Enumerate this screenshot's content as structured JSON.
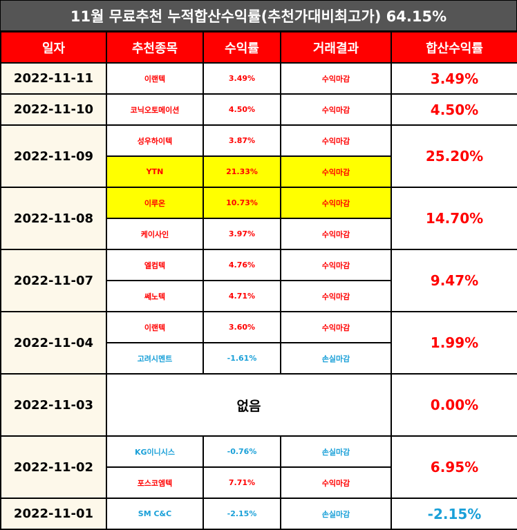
{
  "title": "11월 무료추천 누적합산수익률(추천가대비최고가) 64.15%",
  "headers": [
    "일자",
    "추천종목",
    "수익률",
    "거래결과",
    "합산수익률"
  ],
  "colors": {
    "header_bg": "#ff0000",
    "title_bg": "#555555",
    "date_bg": "#fdf8ea",
    "positive": "#ff0000",
    "negative": "#1aa0d8",
    "highlight": "#ffff00"
  },
  "rows": [
    {
      "date": "2022-11-11",
      "total": "3.49%",
      "total_sign": "pos",
      "items": [
        {
          "stock": "이랜텍",
          "rate": "3.49%",
          "result": "수익마감",
          "sign": "pos",
          "highlight": false
        }
      ]
    },
    {
      "date": "2022-11-10",
      "total": "4.50%",
      "total_sign": "pos",
      "items": [
        {
          "stock": "코닉오토메이션",
          "rate": "4.50%",
          "result": "수익마감",
          "sign": "pos",
          "highlight": false
        }
      ]
    },
    {
      "date": "2022-11-09",
      "total": "25.20%",
      "total_sign": "pos",
      "items": [
        {
          "stock": "성우하이텍",
          "rate": "3.87%",
          "result": "수익마감",
          "sign": "pos",
          "highlight": false
        },
        {
          "stock": "YTN",
          "rate": "21.33%",
          "result": "수익마감",
          "sign": "pos",
          "highlight": true
        }
      ]
    },
    {
      "date": "2022-11-08",
      "total": "14.70%",
      "total_sign": "pos",
      "items": [
        {
          "stock": "이루온",
          "rate": "10.73%",
          "result": "수익마감",
          "sign": "pos",
          "highlight": true
        },
        {
          "stock": "케이사인",
          "rate": "3.97%",
          "result": "수익마감",
          "sign": "pos",
          "highlight": false
        }
      ]
    },
    {
      "date": "2022-11-07",
      "total": "9.47%",
      "total_sign": "pos",
      "items": [
        {
          "stock": "엘컴텍",
          "rate": "4.76%",
          "result": "수익마감",
          "sign": "pos",
          "highlight": false
        },
        {
          "stock": "쎄노텍",
          "rate": "4.71%",
          "result": "수익마감",
          "sign": "pos",
          "highlight": false
        }
      ]
    },
    {
      "date": "2022-11-04",
      "total": "1.99%",
      "total_sign": "pos",
      "items": [
        {
          "stock": "이랜텍",
          "rate": "3.60%",
          "result": "수익마감",
          "sign": "pos",
          "highlight": false
        },
        {
          "stock": "고려시멘트",
          "rate": "-1.61%",
          "result": "손실마감",
          "sign": "neg",
          "highlight": false
        }
      ]
    },
    {
      "date": "2022-11-03",
      "total": "0.00%",
      "total_sign": "pos",
      "none_label": "없음",
      "items": []
    },
    {
      "date": "2022-11-02",
      "total": "6.95%",
      "total_sign": "pos",
      "items": [
        {
          "stock": "KG이니시스",
          "rate": "-0.76%",
          "result": "손실마감",
          "sign": "neg",
          "highlight": false
        },
        {
          "stock": "포스코엠텍",
          "rate": "7.71%",
          "result": "수익마감",
          "sign": "pos",
          "highlight": false
        }
      ]
    },
    {
      "date": "2022-11-01",
      "total": "-2.15%",
      "total_sign": "neg",
      "items": [
        {
          "stock": "SM C&C",
          "rate": "-2.15%",
          "result": "손실마감",
          "sign": "neg",
          "highlight": false
        }
      ]
    }
  ]
}
